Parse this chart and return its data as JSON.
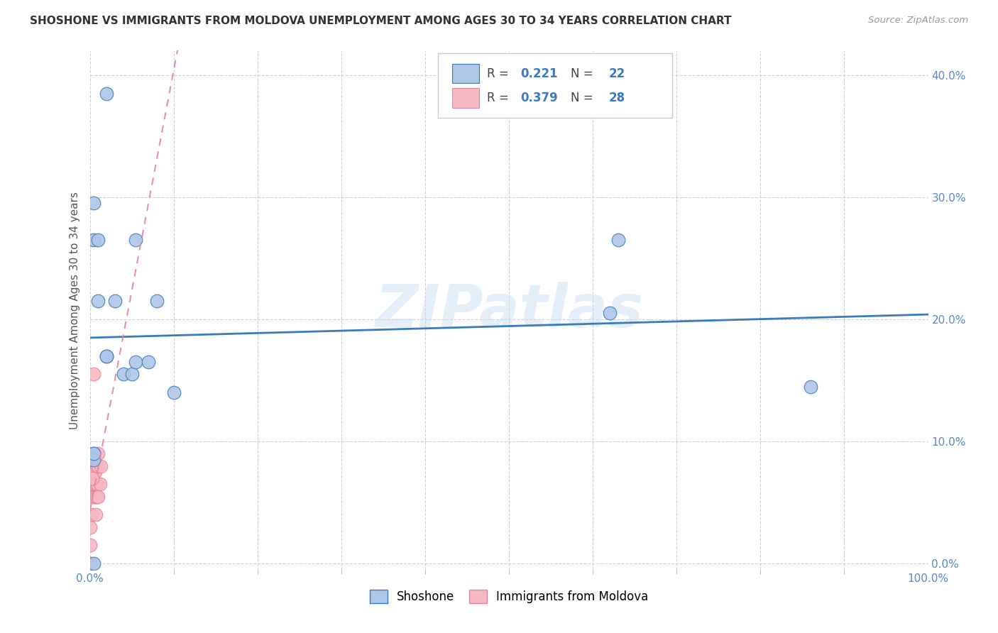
{
  "title": "SHOSHONE VS IMMIGRANTS FROM MOLDOVA UNEMPLOYMENT AMONG AGES 30 TO 34 YEARS CORRELATION CHART",
  "source": "Source: ZipAtlas.com",
  "ylabel": "Unemployment Among Ages 30 to 34 years",
  "legend_label1": "Shoshone",
  "legend_label2": "Immigrants from Moldova",
  "R1": 0.221,
  "N1": 22,
  "R2": 0.379,
  "N2": 28,
  "color1": "#aec6e8",
  "color2": "#f5b8c4",
  "trendline1_color": "#3a7abf",
  "trendline2_color": "#e8849a",
  "watermark": "ZIPatlas",
  "shoshone_x": [
    0.005,
    0.005,
    0.01,
    0.01,
    0.02,
    0.02,
    0.03,
    0.04,
    0.05,
    0.055,
    0.055,
    0.07,
    0.08,
    0.1,
    0.62,
    0.63,
    0.86,
    0.005,
    0.005,
    0.005,
    0.02,
    0.005
  ],
  "shoshone_y": [
    0.295,
    0.265,
    0.265,
    0.215,
    0.17,
    0.17,
    0.215,
    0.155,
    0.155,
    0.265,
    0.165,
    0.165,
    0.215,
    0.14,
    0.205,
    0.265,
    0.145,
    0.09,
    0.085,
    0.0,
    0.385,
    0.09
  ],
  "moldova_x": [
    0.0,
    0.0,
    0.0,
    0.0,
    0.002,
    0.002,
    0.002,
    0.003,
    0.003,
    0.004,
    0.004,
    0.005,
    0.005,
    0.005,
    0.006,
    0.006,
    0.007,
    0.007,
    0.008,
    0.008,
    0.009,
    0.01,
    0.01,
    0.01,
    0.012,
    0.013,
    0.0,
    0.003
  ],
  "moldova_y": [
    0.0,
    0.015,
    0.03,
    0.055,
    0.04,
    0.055,
    0.065,
    0.065,
    0.08,
    0.055,
    0.08,
    0.065,
    0.075,
    0.155,
    0.055,
    0.075,
    0.04,
    0.065,
    0.055,
    0.08,
    0.065,
    0.055,
    0.08,
    0.09,
    0.065,
    0.08,
    0.0,
    0.07
  ],
  "xlim": [
    0.0,
    1.0
  ],
  "ylim": [
    -0.005,
    0.42
  ],
  "xtick_vals": [
    0.0,
    1.0
  ],
  "xtick_labels": [
    "0.0%",
    "100.0%"
  ],
  "xtick_minor": [
    0.1,
    0.2,
    0.3,
    0.4,
    0.5,
    0.6,
    0.7,
    0.8,
    0.9
  ],
  "ytick_vals": [
    0.0,
    0.1,
    0.2,
    0.3,
    0.4
  ],
  "ytick_labels": [
    "0.0%",
    "10.0%",
    "20.0%",
    "30.0%",
    "40.0%"
  ],
  "background_color": "#ffffff",
  "grid_color": "#d0d0d0",
  "tick_color": "#5588cc"
}
